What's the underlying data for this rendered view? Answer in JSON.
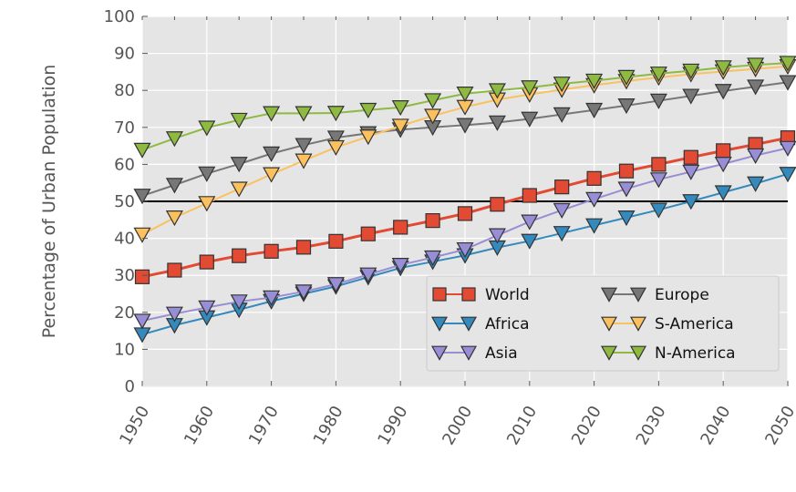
{
  "chart_data": {
    "type": "line",
    "ylabel": "Percentage of Urban Population",
    "xlabel": "",
    "xlim": [
      1950,
      2050
    ],
    "ylim": [
      0,
      100
    ],
    "x_ticks": [
      "1950",
      "1960",
      "1970",
      "1980",
      "1990",
      "2000",
      "2010",
      "2020",
      "2030",
      "2040",
      "2050"
    ],
    "y_ticks": [
      "0",
      "10",
      "20",
      "30",
      "40",
      "50",
      "60",
      "70",
      "80",
      "90",
      "100"
    ],
    "grid": true,
    "legend_position": "lower-right",
    "reference_line": {
      "y": 50,
      "color": "#000000"
    },
    "x": [
      1950,
      1955,
      1960,
      1965,
      1970,
      1975,
      1980,
      1985,
      1990,
      1995,
      2000,
      2005,
      2010,
      2015,
      2020,
      2025,
      2030,
      2035,
      2040,
      2045,
      2050
    ],
    "series": [
      {
        "name": "World",
        "color": "#e24a33",
        "marker": "square",
        "values": [
          29.6,
          31.4,
          33.6,
          35.3,
          36.5,
          37.6,
          39.2,
          41.2,
          43.0,
          44.8,
          46.7,
          49.2,
          51.6,
          53.9,
          56.2,
          58.2,
          60.0,
          61.9,
          63.7,
          65.4,
          67.2
        ]
      },
      {
        "name": "Africa",
        "color": "#348abd",
        "marker": "triangle-down",
        "values": [
          14.0,
          16.5,
          18.6,
          20.7,
          23.0,
          25.0,
          27.0,
          29.5,
          32.0,
          33.7,
          35.4,
          37.5,
          39.3,
          41.4,
          43.5,
          45.6,
          47.7,
          50.0,
          52.4,
          54.8,
          57.4
        ]
      },
      {
        "name": "Asia",
        "color": "#988ed5",
        "marker": "triangle-down",
        "values": [
          17.7,
          19.6,
          21.3,
          22.9,
          24.0,
          25.6,
          27.6,
          30.2,
          32.8,
          34.8,
          37.0,
          40.8,
          44.5,
          47.6,
          50.6,
          53.4,
          55.9,
          58.0,
          60.1,
          62.4,
          64.4
        ]
      },
      {
        "name": "Europe",
        "color": "#777777",
        "marker": "triangle-down",
        "values": [
          51.5,
          54.4,
          57.5,
          60.1,
          62.9,
          65.2,
          67.2,
          68.4,
          69.4,
          70.0,
          70.6,
          71.3,
          72.3,
          73.5,
          74.7,
          75.9,
          77.2,
          78.5,
          79.8,
          81.0,
          82.2
        ]
      },
      {
        "name": "S-America",
        "color": "#fbc15e",
        "marker": "triangle-down",
        "values": [
          41.0,
          45.6,
          49.5,
          53.4,
          57.3,
          61.0,
          64.6,
          67.5,
          70.4,
          73.1,
          75.5,
          77.5,
          78.9,
          80.2,
          81.4,
          82.5,
          83.5,
          84.4,
          85.1,
          85.8,
          86.5
        ]
      },
      {
        "name": "N-America",
        "color": "#8eba42",
        "marker": "triangle-down",
        "values": [
          63.9,
          67.0,
          69.9,
          72.0,
          73.8,
          73.8,
          73.9,
          74.7,
          75.4,
          77.3,
          79.1,
          80.0,
          80.8,
          81.8,
          82.6,
          83.6,
          84.5,
          85.3,
          86.2,
          86.9,
          87.4
        ]
      }
    ]
  }
}
